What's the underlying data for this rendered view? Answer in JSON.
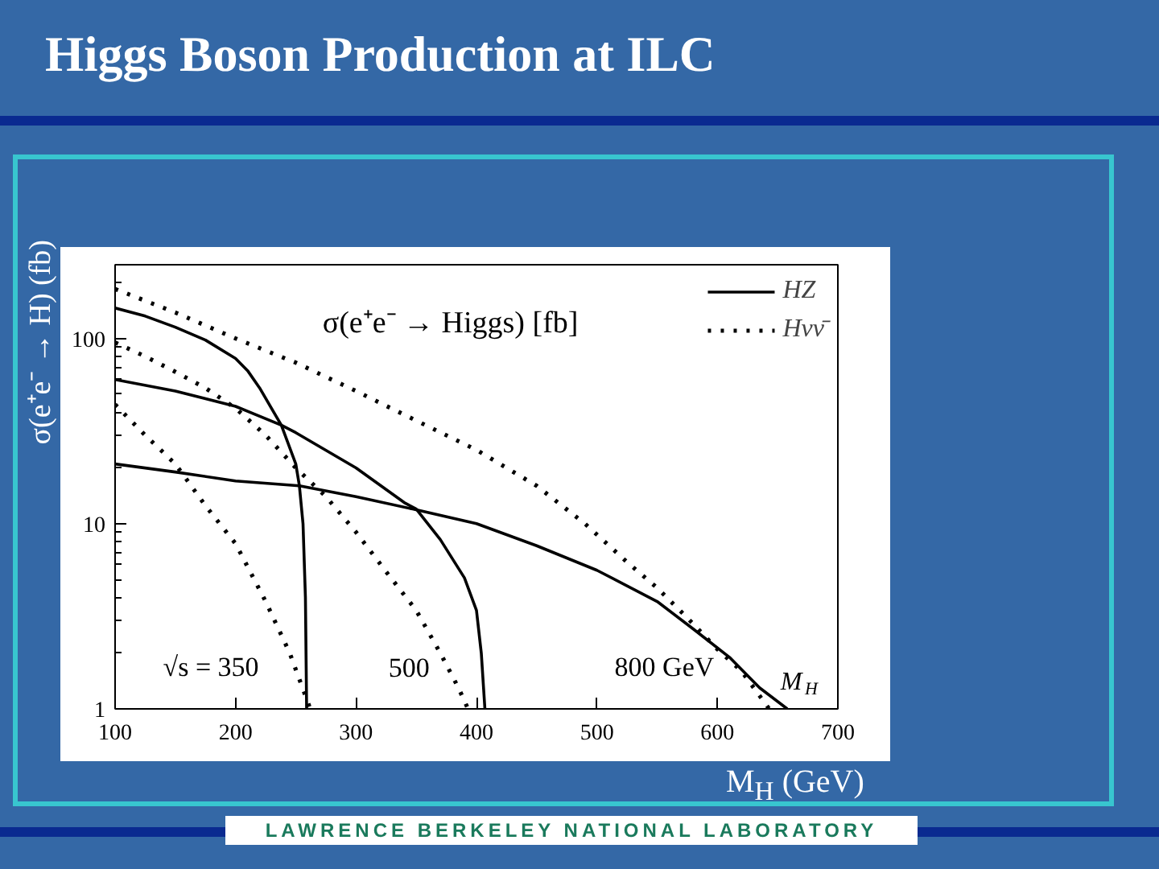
{
  "chart_data": {
    "type": "line",
    "title": "Higgs Boson Production at ILC",
    "subtitle": "σ(e⁺e⁻ → Higgs) [fb]",
    "xlabel": "M$_{H}$ (GeV)",
    "ylabel": "σ(e⁺e⁻ → H) (fb)",
    "log": "y",
    "xlim": [
      100,
      700
    ],
    "ylim": [
      1,
      250
    ],
    "xticks": [
      100,
      200,
      300,
      400,
      500,
      600,
      700
    ],
    "yticks": [
      1,
      {
        "value": 2,
        "label": null
      },
      {
        "value": 3,
        "label": null
      },
      {
        "value": 4,
        "label": null
      },
      {
        "value": 5,
        "label": null
      },
      {
        "value": 6,
        "label": null
      },
      {
        "value": 7,
        "label": null
      },
      {
        "value": 8,
        "label": null
      },
      {
        "value": 9,
        "label": null
      },
      10,
      {
        "value": 20,
        "label": null
      },
      {
        "value": 30,
        "label": null
      },
      {
        "value": 40,
        "label": null
      },
      {
        "value": 50,
        "label": null
      },
      {
        "value": 60,
        "label": null
      },
      {
        "value": 70,
        "label": null
      },
      {
        "value": 80,
        "label": null
      },
      {
        "value": 90,
        "label": null
      },
      100,
      {
        "value": 200,
        "label": null
      }
    ],
    "legend": "top right",
    "series": [
      {
        "name": "HZ",
        "color": "#000000",
        "line_style": "solid",
        "x": [
          100,
          125,
          150,
          175,
          200,
          210,
          220,
          238,
          250,
          253,
          256,
          258,
          259
        ],
        "values": [
          146,
          132,
          115,
          98,
          78,
          67,
          54,
          34,
          21,
          16,
          10,
          4,
          1
        ]
      },
      {
        "color": "#000000",
        "line_style": "solid",
        "x": [
          100,
          150,
          200,
          238,
          250,
          300,
          340,
          350,
          370,
          390,
          400,
          404,
          407
        ],
        "values": [
          60,
          52,
          43,
          34,
          31,
          20,
          13,
          12,
          8.2,
          5.1,
          3.4,
          2.0,
          1
        ]
      },
      {
        "color": "#000000",
        "line_style": "solid",
        "x": [
          100,
          150,
          200,
          253,
          300,
          347,
          400,
          450,
          500,
          550,
          580,
          610,
          635,
          658
        ],
        "values": [
          21,
          19,
          17,
          16,
          14,
          12,
          10,
          7.6,
          5.6,
          3.8,
          2.7,
          1.9,
          1.3,
          1
        ]
      },
      {
        "name": "Hνν̄",
        "color": "#000000",
        "line_style": "dotted",
        "x": [
          100,
          125,
          150,
          175,
          200,
          225,
          245,
          262
        ],
        "values": [
          44,
          30,
          21,
          12.5,
          7.8,
          3.8,
          2.0,
          1
        ]
      },
      {
        "color": "#000000",
        "line_style": "dotted",
        "x": [
          100,
          125,
          150,
          175,
          200,
          225,
          250,
          275,
          300,
          325,
          350,
          370,
          385,
          393
        ],
        "values": [
          95,
          80,
          66,
          54,
          42,
          30,
          20,
          14,
          9,
          5.5,
          3.4,
          2.0,
          1.3,
          1
        ]
      },
      {
        "color": "#000000",
        "line_style": "dotted",
        "x": [
          100,
          150,
          200,
          250,
          300,
          350,
          400,
          450,
          490,
          525,
          550,
          575,
          600,
          620,
          643
        ],
        "values": [
          185,
          138,
          100,
          74,
          52,
          36,
          25,
          16,
          10,
          6.2,
          4.5,
          3.1,
          2.1,
          1.6,
          1
        ]
      }
    ],
    "annotations": [
      "√s = 350",
      "500",
      "800 GeV",
      "M$_{H}$",
      "LAWRENCE BERKELEY NATIONAL LABORATORY"
    ]
  }
}
